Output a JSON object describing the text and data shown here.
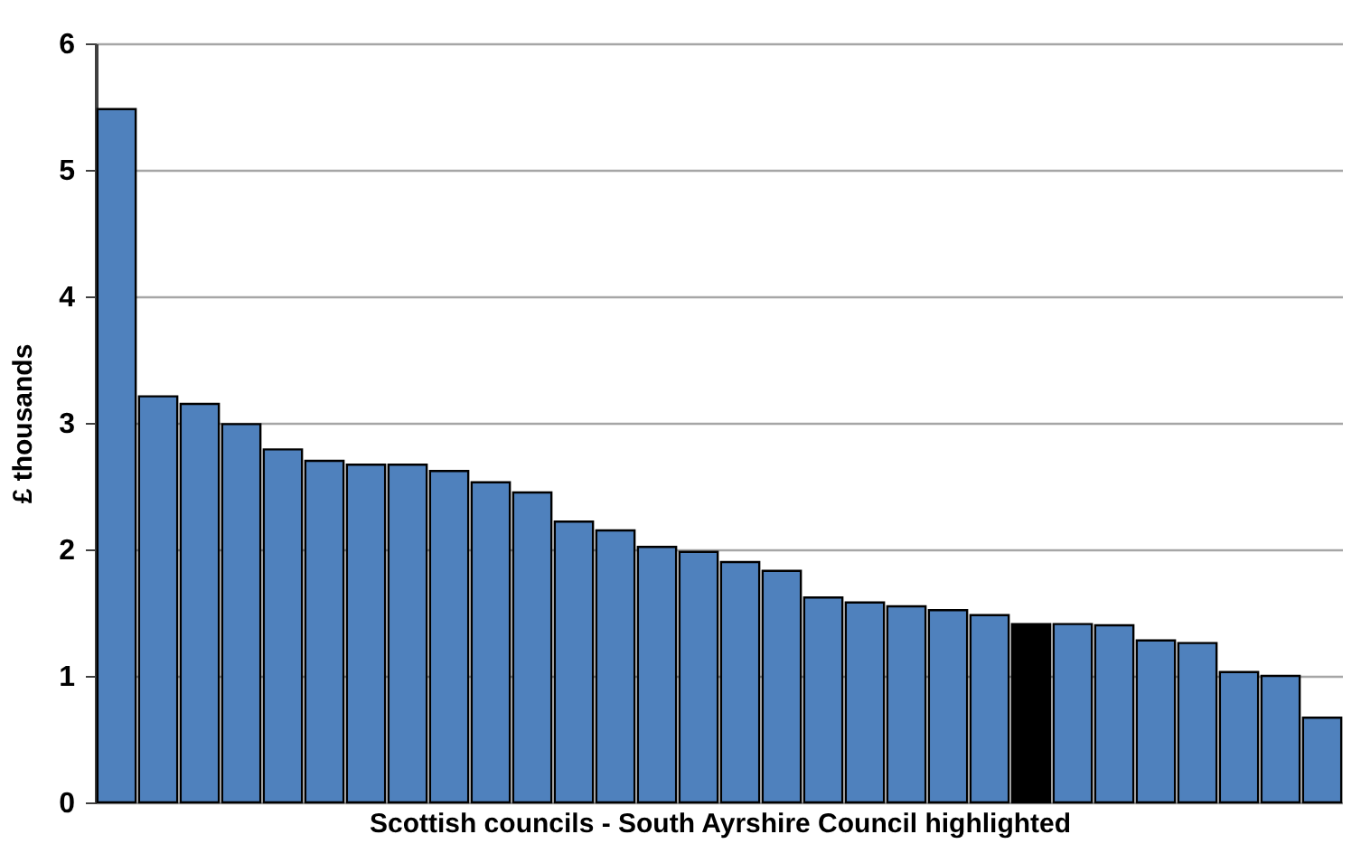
{
  "chart_data": {
    "type": "bar",
    "xlabel": "Scottish councils - South Ayrshire Council highlighted",
    "ylabel": "£ thousands",
    "categories": [
      null,
      null,
      null,
      null,
      null,
      null,
      null,
      null,
      null,
      null,
      null,
      null,
      null,
      null,
      null,
      null,
      null,
      null,
      null,
      null,
      null,
      null,
      null,
      null,
      null,
      null,
      null,
      null,
      null,
      null
    ],
    "values": [
      5.48,
      3.21,
      3.15,
      2.99,
      2.79,
      2.7,
      2.67,
      2.67,
      2.62,
      2.53,
      2.45,
      2.22,
      2.15,
      2.02,
      1.98,
      1.9,
      1.83,
      1.62,
      1.58,
      1.55,
      1.52,
      1.48,
      1.41,
      1.41,
      1.4,
      1.28,
      1.26,
      1.03,
      1.0,
      0.67
    ],
    "colors": [
      "#4f81bd",
      "#4f81bd",
      "#4f81bd",
      "#4f81bd",
      "#4f81bd",
      "#4f81bd",
      "#4f81bd",
      "#4f81bd",
      "#4f81bd",
      "#4f81bd",
      "#4f81bd",
      "#4f81bd",
      "#4f81bd",
      "#4f81bd",
      "#4f81bd",
      "#4f81bd",
      "#4f81bd",
      "#4f81bd",
      "#4f81bd",
      "#4f81bd",
      "#4f81bd",
      "#4f81bd",
      "#000000",
      "#4f81bd",
      "#4f81bd",
      "#4f81bd",
      "#4f81bd",
      "#4f81bd",
      "#4f81bd",
      "#4f81bd"
    ],
    "ylim": [
      0,
      6
    ],
    "yticks": [
      0,
      1,
      2,
      3,
      4,
      5,
      6
    ],
    "grid": "y"
  }
}
